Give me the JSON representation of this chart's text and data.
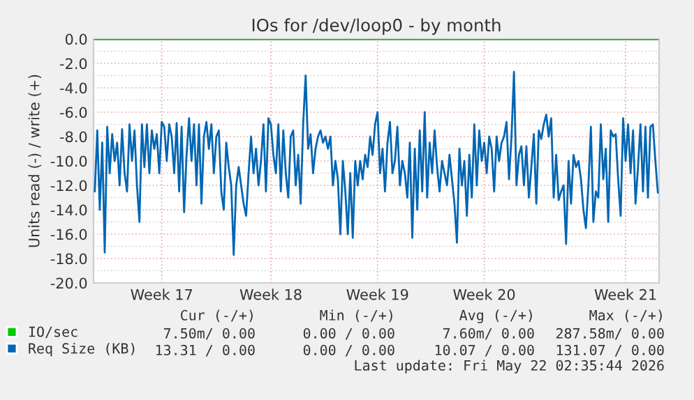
{
  "chart_data": {
    "type": "line",
    "title": "IOs for /dev/loop0 - by month",
    "ylabel": "Units read (-) / write (+)",
    "ylim": [
      -20,
      0
    ],
    "categories": [
      null,
      null,
      null,
      null,
      null,
      null,
      null,
      null,
      null,
      null,
      null,
      null,
      null,
      null,
      null,
      null,
      null,
      null,
      null,
      null,
      null,
      null,
      null,
      null,
      null,
      null,
      null,
      "Week 17",
      null,
      null,
      null,
      null,
      null,
      null,
      null,
      null,
      null,
      null,
      null,
      null,
      null,
      null,
      null,
      null,
      null,
      null,
      null,
      null,
      null,
      null,
      null,
      null,
      null,
      null,
      null,
      null,
      null,
      null,
      null,
      null,
      null,
      null,
      null,
      null,
      null,
      null,
      null,
      null,
      null,
      null,
      null,
      "Week 18",
      null,
      null,
      null,
      null,
      null,
      null,
      null,
      null,
      null,
      null,
      null,
      null,
      null,
      null,
      null,
      null,
      null,
      null,
      null,
      null,
      null,
      null,
      null,
      null,
      null,
      null,
      null,
      null,
      null,
      null,
      null,
      null,
      null,
      null,
      null,
      null,
      null,
      null,
      null,
      null,
      null,
      null,
      "Week 19",
      null,
      null,
      null,
      null,
      null,
      null,
      null,
      null,
      null,
      null,
      null,
      null,
      null,
      null,
      null,
      null,
      null,
      null,
      null,
      null,
      null,
      null,
      null,
      null,
      null,
      null,
      null,
      null,
      null,
      null,
      null,
      null,
      null,
      null,
      null,
      null,
      null,
      null,
      null,
      null,
      null,
      null,
      "Week 20",
      null,
      null,
      null,
      null,
      null,
      null,
      null,
      null,
      null,
      null,
      null,
      null,
      null,
      null,
      null,
      null,
      null,
      null,
      null,
      null,
      null,
      null,
      null,
      null,
      null,
      null,
      null,
      null,
      null,
      null,
      null,
      null,
      null,
      null,
      null,
      null,
      null,
      null,
      null,
      null,
      null,
      null,
      null,
      null,
      null,
      null,
      null,
      null,
      null,
      null,
      null,
      null,
      null,
      null,
      null,
      null,
      "Week 21",
      null,
      null,
      null,
      null,
      null,
      null,
      null,
      null,
      null,
      null,
      null,
      null,
      null
    ],
    "yticks": [
      {
        "value": 0,
        "label": "0.0"
      },
      {
        "value": -2,
        "label": "-2.0"
      },
      {
        "value": -4,
        "label": "-4.0"
      },
      {
        "value": -6,
        "label": "-6.0"
      },
      {
        "value": -8,
        "label": "-8.0"
      },
      {
        "value": -10,
        "label": "-10.0"
      },
      {
        "value": -12,
        "label": "-12.0"
      },
      {
        "value": -14,
        "label": "-14.0"
      },
      {
        "value": -16,
        "label": "-16.0"
      },
      {
        "value": -18,
        "label": "-18.0"
      },
      {
        "value": -20,
        "label": "-20.0"
      }
    ],
    "grid": true,
    "legend": "bottom left",
    "marker": "none",
    "line_style": "solid",
    "ref_lines": [
      {
        "axis": "y",
        "value": 0,
        "color": "#000000"
      }
    ],
    "series": [
      {
        "name": "IO/sec",
        "color": "#00cc00",
        "values": [
          0,
          0,
          0,
          0,
          0,
          0,
          0,
          0,
          0,
          0,
          0,
          0,
          0,
          0,
          0,
          0,
          0,
          0,
          0,
          0,
          0,
          0,
          0,
          0,
          0,
          0,
          0,
          0,
          0,
          0,
          0,
          0,
          0,
          0,
          0,
          0,
          0,
          0,
          0,
          0,
          0,
          0,
          0,
          0,
          0,
          0,
          0,
          0,
          0,
          0,
          0,
          0,
          0,
          0,
          0,
          0,
          0,
          0,
          0,
          0,
          0,
          0,
          0,
          0,
          0,
          0,
          0,
          0,
          0,
          0,
          0,
          0,
          0,
          0,
          0,
          0,
          0,
          0,
          0,
          0,
          0,
          0,
          0,
          0,
          0,
          0,
          0,
          0,
          0,
          0,
          0,
          0,
          0,
          0,
          0,
          0,
          0,
          0,
          0,
          0,
          0,
          0,
          0,
          0,
          0,
          0,
          0,
          0,
          0,
          0,
          0,
          0,
          0,
          0,
          0,
          0,
          0,
          0,
          0,
          0,
          0,
          0,
          0,
          0,
          0,
          0,
          0,
          0,
          0,
          0,
          0,
          0,
          0,
          0,
          0,
          0,
          0,
          0,
          0,
          0,
          0,
          0,
          0,
          0,
          0,
          0,
          0,
          0,
          0,
          0,
          0,
          0,
          0,
          0,
          0,
          0,
          0,
          0,
          0,
          0,
          0,
          0,
          0,
          0,
          0,
          0,
          0,
          0,
          0,
          0,
          0,
          0,
          0,
          0,
          0,
          0,
          0,
          0,
          0,
          0,
          0,
          0,
          0,
          0,
          0,
          0,
          0,
          0,
          0,
          0,
          0,
          0,
          0,
          0,
          0,
          0,
          0,
          0,
          0,
          0,
          0,
          0,
          0,
          0,
          0,
          0,
          0,
          0,
          0,
          0,
          0,
          0,
          0,
          0,
          0,
          0,
          0,
          0,
          0,
          0,
          0,
          0,
          0,
          0,
          0,
          0,
          0,
          0
        ]
      },
      {
        "name": "Req Size (KB)",
        "color": "#0066b3",
        "values": [
          -12.5,
          -7.5,
          -14.0,
          -8.5,
          -17.5,
          -7.2,
          -11,
          -7.8,
          -10,
          -8.5,
          -12,
          -7.4,
          -11,
          -12.5,
          -7,
          -10,
          -7.5,
          -12,
          -15,
          -7,
          -10.5,
          -7,
          -11,
          -7.5,
          -9,
          -7.8,
          -11,
          -6.8,
          -7.2,
          -10,
          -7.0,
          -8,
          -11,
          -6.9,
          -12.5,
          -7.2,
          -14.2,
          -9.5,
          -6.5,
          -10,
          -7,
          -12,
          -7,
          -13.5,
          -8,
          -6.8,
          -9,
          -7.0,
          -11,
          -8,
          -7.5,
          -12.5,
          -14,
          -8.5,
          -10.5,
          -12,
          -17.7,
          -12,
          -10.5,
          -12,
          -13.5,
          -14.5,
          -11,
          -8,
          -11,
          -9,
          -12,
          -10,
          -7,
          -12.5,
          -6.5,
          -7,
          -9.5,
          -11,
          -7,
          -12.5,
          -7.5,
          -11,
          -13,
          -8,
          -7.5,
          -12,
          -9.5,
          -13.5,
          -7,
          -3,
          -9,
          -7.8,
          -11,
          -9,
          -8,
          -7.5,
          -8.5,
          -8,
          -9,
          -8,
          -12,
          -10,
          -11.5,
          -16,
          -10,
          -12.5,
          -16,
          -11,
          -16.3,
          -10,
          -12,
          -10,
          -11.5,
          -9.5,
          -10.5,
          -8,
          -9.5,
          -7,
          -6,
          -11,
          -9,
          -12.5,
          -8.5,
          -6.8,
          -11,
          -10,
          -7.2,
          -12,
          -10,
          -11,
          -13,
          -8.5,
          -16.3,
          -9,
          -14,
          -7.5,
          -12.5,
          -6,
          -13,
          -8.5,
          -11,
          -7.5,
          -10.5,
          -12.5,
          -10,
          -11,
          -12,
          -9.5,
          -11.5,
          -13.5,
          -16.7,
          -9,
          -12,
          -10,
          -14.5,
          -9.5,
          -13,
          -7,
          -12,
          -7.5,
          -10,
          -8.5,
          -11,
          -8,
          -9,
          -12.5,
          -8,
          -10,
          -8.5,
          -8.0,
          -6.8,
          -11.5,
          -8,
          -2.7,
          -12,
          -9.5,
          -8.8,
          -12,
          -8.8,
          -13,
          -10.5,
          -7.8,
          -13.5,
          -7.5,
          -8.2,
          -7.0,
          -6.2,
          -8,
          -6.5,
          -13,
          -9.5,
          -13.2,
          -12.5,
          -12,
          -16.8,
          -10,
          -13.5,
          -9.5,
          -10.5,
          -10,
          -11.5,
          -14,
          -15.5,
          -12,
          -7.2,
          -15,
          -12.5,
          -13,
          -7,
          -11.5,
          -9,
          -15,
          -7.5,
          -8,
          -7.8,
          -11.5,
          -14.5,
          -6.5,
          -10,
          -7,
          -11,
          -7.5,
          -13.5,
          -10.5,
          -7,
          -12.5,
          -7.2,
          -13,
          -7.2,
          -7,
          -10,
          -12.6
        ]
      }
    ],
    "annotations": [
      "Cur (-/+)",
      "Min (-/+)",
      "Avg (-/+)",
      "Max (-/+)",
      "7.50m/ 0.00",
      "0.00 / 0.00",
      "7.60m/ 0.00",
      "287.58m/ 0.00",
      "13.31 / 0.00",
      "0.00 / 0.00",
      "10.07 / 0.00",
      "131.07 / 0.00",
      "Last update: Fri May 22 02:35:44 2026"
    ]
  }
}
